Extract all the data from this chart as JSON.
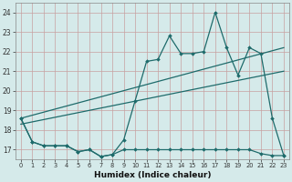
{
  "background_color": "#d5eaea",
  "grid_color": "#c8a0a0",
  "line_color": "#1e6b6b",
  "xlabel": "Humidex (Indice chaleur)",
  "xlim_min": -0.5,
  "xlim_max": 23.5,
  "ylim_min": 16.5,
  "ylim_max": 24.5,
  "yticks": [
    17,
    18,
    19,
    20,
    21,
    22,
    23,
    24
  ],
  "xticks": [
    0,
    1,
    2,
    3,
    4,
    5,
    6,
    7,
    8,
    9,
    10,
    11,
    12,
    13,
    14,
    15,
    16,
    17,
    18,
    19,
    20,
    21,
    22,
    23
  ],
  "s1_y": [
    18.6,
    17.4,
    17.2,
    17.2,
    17.2,
    16.9,
    17.0,
    16.65,
    16.75,
    17.5,
    19.5,
    21.5,
    21.6,
    22.8,
    21.9,
    21.9,
    22.0,
    24.0,
    22.2,
    20.8,
    22.2,
    21.9,
    18.6,
    16.7
  ],
  "s2_y": [
    18.6,
    17.4,
    17.2,
    17.2,
    17.2,
    16.9,
    17.0,
    16.65,
    16.75,
    17.0,
    17.0,
    17.0,
    17.0,
    17.0,
    17.0,
    17.0,
    17.0,
    17.0,
    17.0,
    17.0,
    17.0,
    16.8,
    16.7,
    16.7
  ],
  "trend1_x": [
    0,
    23
  ],
  "trend1_y": [
    18.6,
    22.2
  ],
  "trend2_x": [
    0,
    23
  ],
  "trend2_y": [
    18.3,
    21.0
  ]
}
